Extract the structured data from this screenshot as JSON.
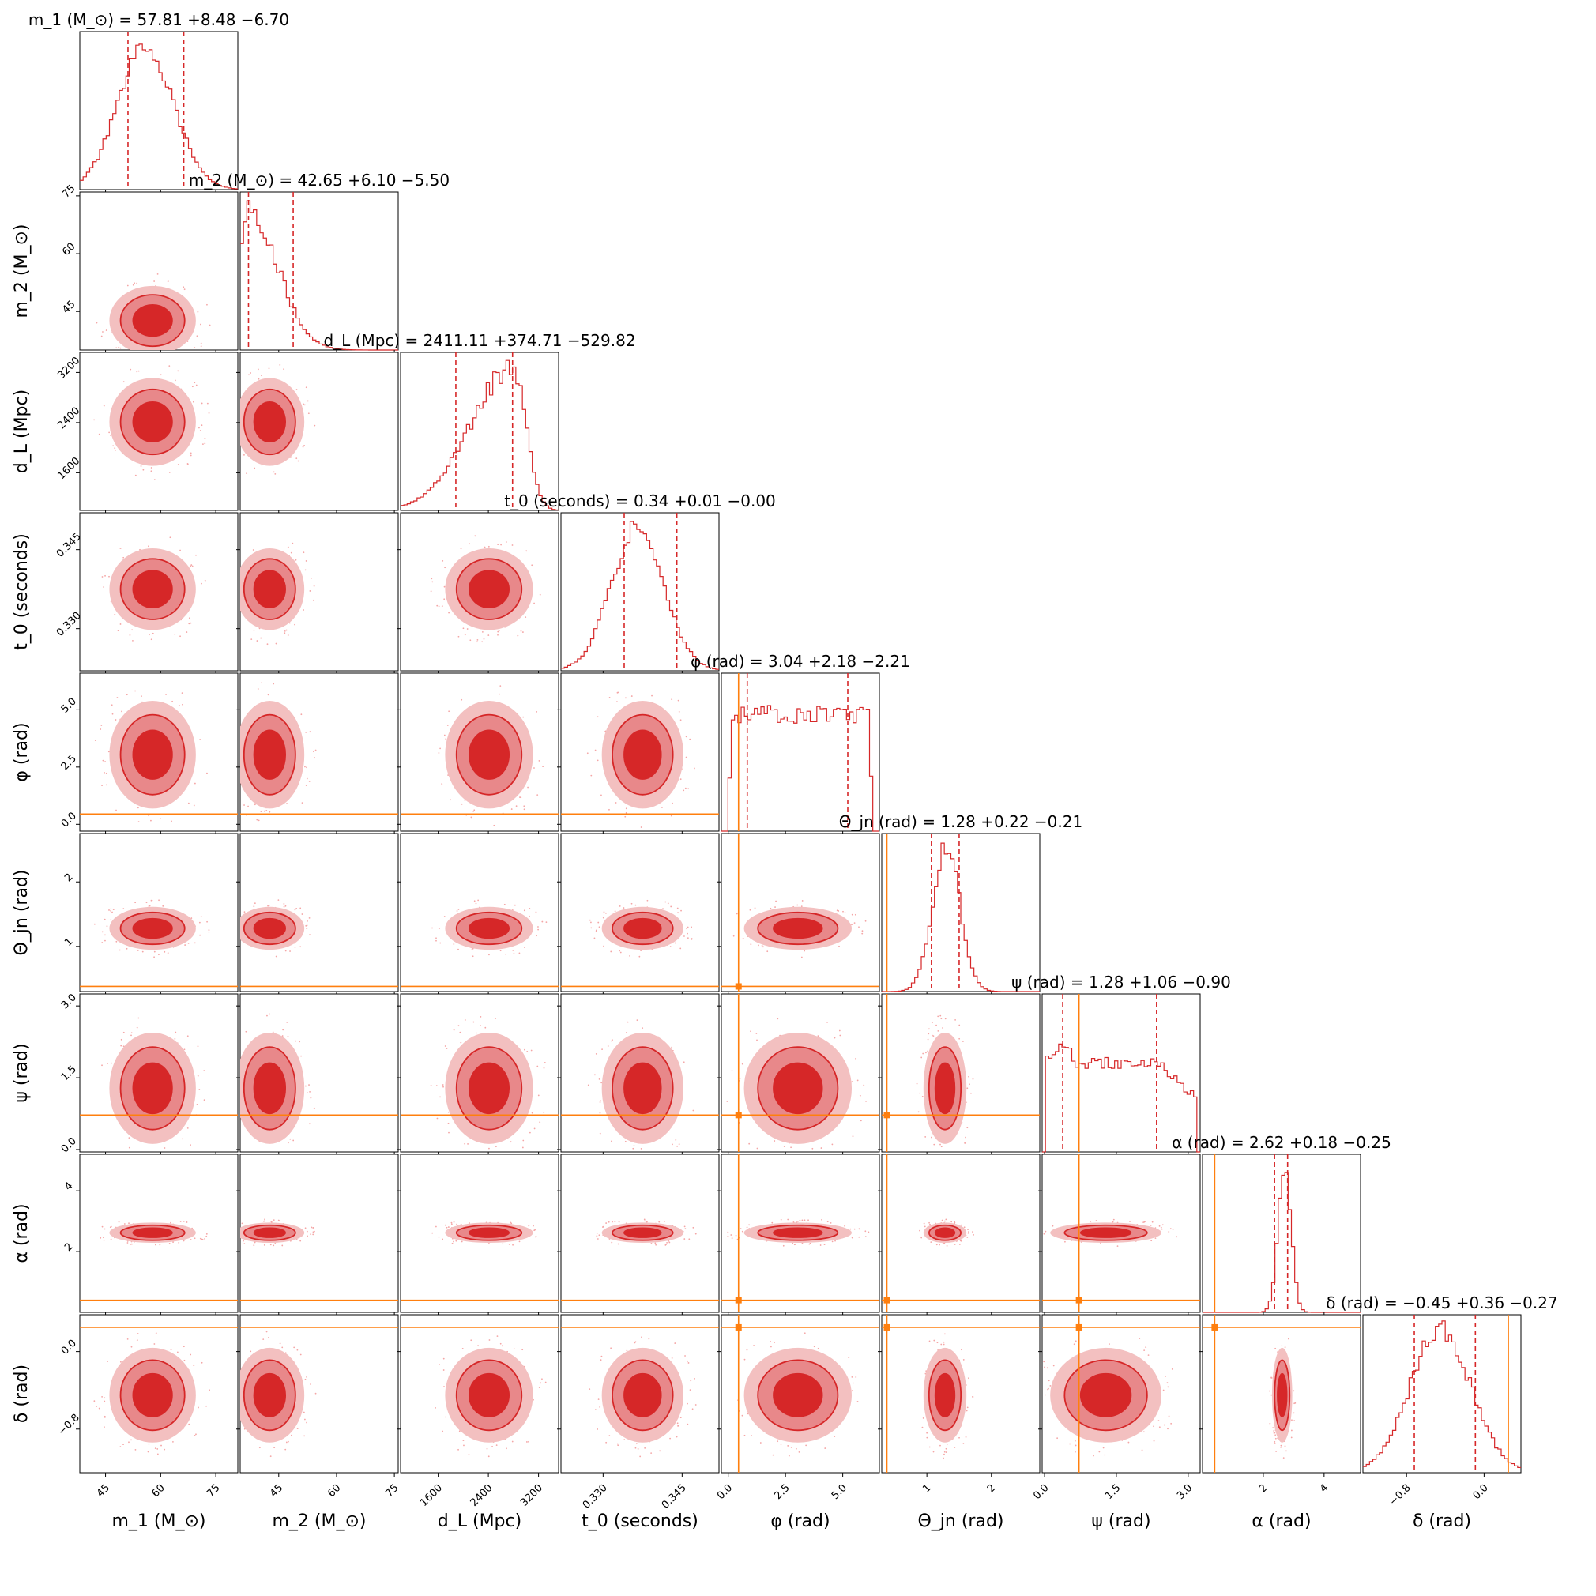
{
  "chart_data": {
    "type": "corner",
    "title": "",
    "colors": {
      "posterior": "#d62728",
      "truth": "#ff7f0e"
    },
    "params": [
      {
        "label": "m_1 (M_⊙)",
        "title": "m_1 (M_⊙) = 57.81 +8.48 −6.70",
        "median": 57.81,
        "plus": 8.48,
        "minus": 6.7,
        "range": [
          38,
          81
        ],
        "ticks": [
          45,
          60,
          75
        ],
        "tick_labels": [
          "45",
          "60",
          "75"
        ],
        "truth": null,
        "peak": 56,
        "kind": "gauss"
      },
      {
        "label": "m_2 (M_⊙)",
        "title": "m_2 (M_⊙) = 42.65 +6.10 −5.50",
        "median": 42.65,
        "plus": 6.1,
        "minus": 5.5,
        "range": [
          35,
          76
        ],
        "ticks": [
          45,
          60,
          75
        ],
        "tick_labels": [
          "45",
          "60",
          "75"
        ],
        "truth": null,
        "peak": 37,
        "kind": "skew_right"
      },
      {
        "label": "d_L (Mpc)",
        "title": "d_L (Mpc) = 2411.11 +374.71 −529.82",
        "median": 2411.11,
        "plus": 374.71,
        "minus": 529.82,
        "range": [
          1000,
          3520
        ],
        "ticks": [
          1600,
          2400,
          3200
        ],
        "tick_labels": [
          "1600",
          "2400",
          "3200"
        ],
        "truth": null,
        "peak": 2800,
        "kind": "skew_left"
      },
      {
        "label": "t_0 (seconds)",
        "title": "t_0 (seconds) = 0.34 +0.01 −0.00",
        "median": 0.3375,
        "plus": 0.0065,
        "minus": 0.0035,
        "range": [
          0.322,
          0.352
        ],
        "ticks": [
          0.33,
          0.345
        ],
        "tick_labels": [
          "0.330",
          "0.345"
        ],
        "truth": null,
        "peak": 0.3365,
        "kind": "gauss"
      },
      {
        "label": "φ (rad)",
        "title": "φ (rad) = 3.04 +2.18 −2.21",
        "median": 3.04,
        "plus": 2.18,
        "minus": 2.21,
        "range": [
          -0.3,
          6.6
        ],
        "ticks": [
          0.0,
          2.5,
          5.0
        ],
        "tick_labels": [
          "0.0",
          "2.5",
          "5.0"
        ],
        "truth": 0.45,
        "peak": 3.0,
        "kind": "flat"
      },
      {
        "label": "Θ_jn (rad)",
        "title": "Θ_jn (rad) = 1.28 +0.22 −0.21",
        "median": 1.28,
        "plus": 0.22,
        "minus": 0.21,
        "range": [
          0.3,
          2.75
        ],
        "ticks": [
          1,
          2
        ],
        "tick_labels": [
          "1",
          "2"
        ],
        "truth": 0.38,
        "peak": 1.3,
        "kind": "gauss"
      },
      {
        "label": "ψ (rad)",
        "title": "ψ (rad) = 1.28 +1.06 −0.90",
        "median": 1.28,
        "plus": 1.06,
        "minus": 0.9,
        "range": [
          -0.05,
          3.25
        ],
        "ticks": [
          0.0,
          1.5,
          3.0
        ],
        "tick_labels": [
          "0.0",
          "1.5",
          "3.0"
        ],
        "truth": 0.72,
        "peak": 0.5,
        "kind": "flatish"
      },
      {
        "label": "α (rad)",
        "title": "α (rad) = 2.62 +0.18 −0.25",
        "median": 2.62,
        "plus": 0.18,
        "minus": 0.25,
        "range": [
          0.0,
          5.2
        ],
        "ticks": [
          2,
          4
        ],
        "tick_labels": [
          "2",
          "4"
        ],
        "truth": 0.4,
        "peak": 2.7,
        "kind": "gauss"
      },
      {
        "label": "δ (rad)",
        "title": "δ (rad) = −0.45 +0.36 −0.27",
        "median": -0.45,
        "plus": 0.36,
        "minus": 0.27,
        "range": [
          -1.25,
          0.38
        ],
        "ticks": [
          -0.8,
          0.0
        ],
        "tick_labels": [
          "−0.8",
          "0.0"
        ],
        "truth": 0.25,
        "peak": -0.45,
        "kind": "gauss"
      }
    ]
  }
}
